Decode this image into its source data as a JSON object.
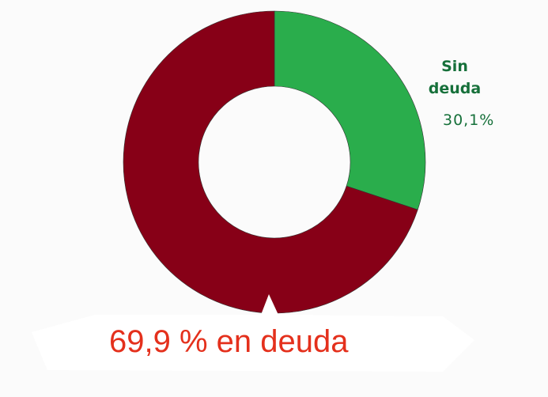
{
  "chart_data": {
    "type": "pie",
    "donut": true,
    "categories": [
      "Sin deuda",
      null
    ],
    "values": [
      30.1,
      69.9
    ],
    "value_labels": [
      "30,1%",
      "69,9 % en deuda"
    ],
    "colors": [
      "#2aad4c",
      "#870017"
    ]
  }
}
